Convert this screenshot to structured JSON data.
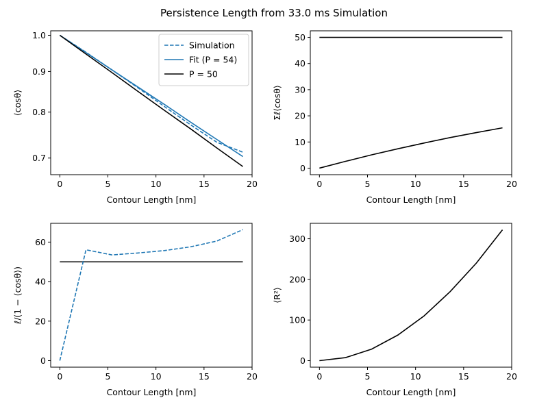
{
  "figure": {
    "title": "Persistence Length from 33.0 ms Simulation"
  },
  "colors": {
    "simulation": "#1f77b4",
    "fit": "#1f77b4",
    "reference": "#000000"
  },
  "chart_data": [
    {
      "type": "line",
      "panel": "top-left",
      "xlabel": "Contour Length [nm]",
      "ylabel": "⟨cosθ⟩",
      "xlim": [
        -0.95,
        20
      ],
      "ylim": [
        0.667,
        1.013
      ],
      "yscale": "log",
      "xticks": [
        0,
        5,
        10,
        15,
        20
      ],
      "yticks": [
        0.7,
        0.8,
        0.9,
        1.0
      ],
      "ytick_labels": [
        "0.7",
        "0.8",
        "0.9",
        "1.0"
      ],
      "legend": {
        "position": "top-right",
        "entries": [
          "Simulation",
          "Fit (P = 54)",
          "P = 50"
        ]
      },
      "series": [
        {
          "name": "Simulation",
          "style": "dashed",
          "color": "#1f77b4",
          "x": [
            0,
            2.72,
            5.44,
            8.16,
            10.88,
            13.6,
            16.32,
            19.04
          ],
          "y": [
            1.0,
            0.952,
            0.904,
            0.858,
            0.813,
            0.771,
            0.733,
            0.712
          ]
        },
        {
          "name": "Fit (P = 54)",
          "style": "solid",
          "color": "#1f77b4",
          "x": [
            0,
            2.72,
            5.44,
            8.16,
            10.88,
            13.6,
            16.32,
            19.04
          ],
          "y": [
            1.0,
            0.951,
            0.904,
            0.86,
            0.818,
            0.777,
            0.739,
            0.703
          ]
        },
        {
          "name": "P = 50",
          "style": "solid",
          "color": "#000000",
          "x": [
            0,
            2.72,
            5.44,
            8.16,
            10.88,
            13.6,
            16.32,
            19.04
          ],
          "y": [
            1.0,
            0.947,
            0.897,
            0.849,
            0.804,
            0.762,
            0.721,
            0.683
          ]
        }
      ]
    },
    {
      "type": "line",
      "panel": "top-right",
      "xlabel": "Contour Length [nm]",
      "ylabel": "Σℓ⟨cosθ⟩",
      "xlim": [
        -0.95,
        20
      ],
      "ylim": [
        -2.5,
        52.5
      ],
      "yscale": "linear",
      "xticks": [
        0,
        5,
        10,
        15,
        20
      ],
      "yticks": [
        0,
        10,
        20,
        30,
        40,
        50
      ],
      "series": [
        {
          "name": "",
          "style": "solid",
          "color": "#000000",
          "x": [
            0,
            19.04
          ],
          "y": [
            50,
            50
          ]
        },
        {
          "name": "",
          "style": "solid",
          "color": "#000000",
          "x": [
            0,
            2.72,
            5.44,
            8.16,
            10.88,
            13.6,
            16.32,
            19.04
          ],
          "y": [
            0,
            2.6,
            5.1,
            7.4,
            9.6,
            11.7,
            13.6,
            15.4
          ]
        }
      ]
    },
    {
      "type": "line",
      "panel": "bottom-left",
      "xlabel": "Contour Length [nm]",
      "ylabel": "ℓ/(1 − ⟨cosθ⟩)",
      "xlim": [
        -0.95,
        20
      ],
      "ylim": [
        -3.3,
        69.5
      ],
      "yscale": "linear",
      "xticks": [
        0,
        5,
        10,
        15,
        20
      ],
      "yticks": [
        0,
        20,
        40,
        60
      ],
      "series": [
        {
          "name": "",
          "style": "solid",
          "color": "#000000",
          "x": [
            0,
            19.04
          ],
          "y": [
            50,
            50
          ]
        },
        {
          "name": "Simulation",
          "style": "dashed",
          "color": "#1f77b4",
          "x": [
            0,
            2.72,
            5.44,
            8.16,
            10.88,
            13.6,
            16.32,
            19.04
          ],
          "y": [
            0,
            56.1,
            53.5,
            54.5,
            55.7,
            57.6,
            60.5,
            66.3
          ]
        }
      ]
    },
    {
      "type": "line",
      "panel": "bottom-right",
      "xlabel": "Contour Length [nm]",
      "ylabel": "⟨R²⟩",
      "xlim": [
        -0.95,
        20
      ],
      "ylim": [
        -16,
        338
      ],
      "yscale": "linear",
      "xticks": [
        0,
        5,
        10,
        15,
        20
      ],
      "yticks": [
        0,
        100,
        200,
        300
      ],
      "series": [
        {
          "name": "",
          "style": "solid",
          "color": "#000000",
          "x": [
            0,
            2.72,
            5.44,
            8.16,
            10.88,
            13.6,
            16.32,
            19.04
          ],
          "y": [
            0,
            7.5,
            28.5,
            63,
            110,
            170,
            240,
            322
          ]
        }
      ]
    }
  ]
}
